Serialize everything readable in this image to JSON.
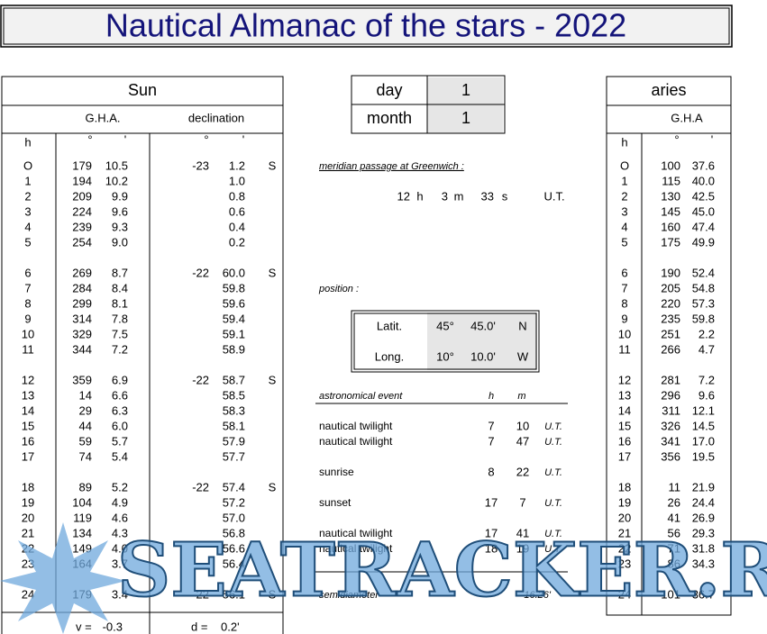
{
  "title": "Nautical Almanac of the stars  -  2022",
  "sun": {
    "header": "Sun",
    "gha_header": "G.H.A.",
    "dec_header": "declination",
    "col_h": "h",
    "deg": "°",
    "min": "'",
    "rows": [
      {
        "h": "O",
        "gha_deg": "179",
        "gha_min": "10.5",
        "dec_deg": "-23",
        "dec_min": "1.2",
        "ns": "S"
      },
      {
        "h": "1",
        "gha_deg": "194",
        "gha_min": "10.2",
        "dec_min": "1.0"
      },
      {
        "h": "2",
        "gha_deg": "209",
        "gha_min": "9.9",
        "dec_min": "0.8"
      },
      {
        "h": "3",
        "gha_deg": "224",
        "gha_min": "9.6",
        "dec_min": "0.6"
      },
      {
        "h": "4",
        "gha_deg": "239",
        "gha_min": "9.3",
        "dec_min": "0.4"
      },
      {
        "h": "5",
        "gha_deg": "254",
        "gha_min": "9.0",
        "dec_min": "0.2"
      },
      {
        "h": "6",
        "gha_deg": "269",
        "gha_min": "8.7",
        "dec_deg": "-22",
        "dec_min": "60.0",
        "ns": "S"
      },
      {
        "h": "7",
        "gha_deg": "284",
        "gha_min": "8.4",
        "dec_min": "59.8"
      },
      {
        "h": "8",
        "gha_deg": "299",
        "gha_min": "8.1",
        "dec_min": "59.6"
      },
      {
        "h": "9",
        "gha_deg": "314",
        "gha_min": "7.8",
        "dec_min": "59.4"
      },
      {
        "h": "10",
        "gha_deg": "329",
        "gha_min": "7.5",
        "dec_min": "59.1"
      },
      {
        "h": "11",
        "gha_deg": "344",
        "gha_min": "7.2",
        "dec_min": "58.9"
      },
      {
        "h": "12",
        "gha_deg": "359",
        "gha_min": "6.9",
        "dec_deg": "-22",
        "dec_min": "58.7",
        "ns": "S"
      },
      {
        "h": "13",
        "gha_deg": "14",
        "gha_min": "6.6",
        "dec_min": "58.5"
      },
      {
        "h": "14",
        "gha_deg": "29",
        "gha_min": "6.3",
        "dec_min": "58.3"
      },
      {
        "h": "15",
        "gha_deg": "44",
        "gha_min": "6.0",
        "dec_min": "58.1"
      },
      {
        "h": "16",
        "gha_deg": "59",
        "gha_min": "5.7",
        "dec_min": "57.9"
      },
      {
        "h": "17",
        "gha_deg": "74",
        "gha_min": "5.4",
        "dec_min": "57.7"
      },
      {
        "h": "18",
        "gha_deg": "89",
        "gha_min": "5.2",
        "dec_deg": "-22",
        "dec_min": "57.4",
        "ns": "S"
      },
      {
        "h": "19",
        "gha_deg": "104",
        "gha_min": "4.9",
        "dec_min": "57.2"
      },
      {
        "h": "20",
        "gha_deg": "119",
        "gha_min": "4.6",
        "dec_min": "57.0"
      },
      {
        "h": "21",
        "gha_deg": "134",
        "gha_min": "4.3",
        "dec_min": "56.8"
      },
      {
        "h": "22",
        "gha_deg": "149",
        "gha_min": "4.0",
        "dec_min": "56.6"
      },
      {
        "h": "23",
        "gha_deg": "164",
        "gha_min": "3.7",
        "dec_min": "56.4"
      },
      {
        "h": "24",
        "gha_deg": "179",
        "gha_min": "3.4",
        "dec_deg": "-22",
        "dec_min": "56.1",
        "ns": "S"
      }
    ],
    "footer": {
      "v_label": "v =",
      "v": "-0.3",
      "d_label": "d =",
      "d": "0.2'"
    }
  },
  "inputs": {
    "day_label": "day",
    "day": "1",
    "month_label": "month",
    "month": "1"
  },
  "meridian": {
    "label": "meridian passage at Greenwich :",
    "hours": "12",
    "h": "h",
    "minutes": "3",
    "m": "m",
    "seconds": "33",
    "s": "s",
    "ut": "U.T."
  },
  "position": {
    "label": "position :",
    "lat": {
      "label": "Latit.",
      "deg": "45°",
      "min": "45.0'",
      "dir": "N"
    },
    "lon": {
      "label": "Long.",
      "deg": "10°",
      "min": "10.0'",
      "dir": "W"
    }
  },
  "events": {
    "header": "astronomical event",
    "h": "h",
    "m": "m",
    "rows": [
      {
        "name": "nautical twilight",
        "h": "7",
        "m": "10",
        "ut": "U.T."
      },
      {
        "name": "nautical twilight",
        "h": "7",
        "m": "47",
        "ut": "U.T."
      },
      {
        "name": "sunrise",
        "h": "8",
        "m": "22",
        "ut": "U.T."
      },
      {
        "name": "sunset",
        "h": "17",
        "m": "7",
        "ut": "U.T."
      },
      {
        "name": "nautical twilight",
        "h": "17",
        "m": "41",
        "ut": "U.T."
      },
      {
        "name": "nautical twilight",
        "h": "18",
        "m": "19",
        "ut": "U.T."
      }
    ]
  },
  "semidiameter": {
    "label": "semidiameter",
    "value": "16.26'"
  },
  "aries": {
    "header": "aries",
    "gha_header": "G.H.A",
    "col_h": "h",
    "deg": "°",
    "min": "'",
    "rows": [
      {
        "h": "O",
        "deg": "100",
        "min": "37.6"
      },
      {
        "h": "1",
        "deg": "115",
        "min": "40.0"
      },
      {
        "h": "2",
        "deg": "130",
        "min": "42.5"
      },
      {
        "h": "3",
        "deg": "145",
        "min": "45.0"
      },
      {
        "h": "4",
        "deg": "160",
        "min": "47.4"
      },
      {
        "h": "5",
        "deg": "175",
        "min": "49.9"
      },
      {
        "h": "6",
        "deg": "190",
        "min": "52.4"
      },
      {
        "h": "7",
        "deg": "205",
        "min": "54.8"
      },
      {
        "h": "8",
        "deg": "220",
        "min": "57.3"
      },
      {
        "h": "9",
        "deg": "235",
        "min": "59.8"
      },
      {
        "h": "10",
        "deg": "251",
        "min": "2.2"
      },
      {
        "h": "11",
        "deg": "266",
        "min": "4.7"
      },
      {
        "h": "12",
        "deg": "281",
        "min": "7.2"
      },
      {
        "h": "13",
        "deg": "296",
        "min": "9.6"
      },
      {
        "h": "14",
        "deg": "311",
        "min": "12.1"
      },
      {
        "h": "15",
        "deg": "326",
        "min": "14.5"
      },
      {
        "h": "16",
        "deg": "341",
        "min": "17.0"
      },
      {
        "h": "17",
        "deg": "356",
        "min": "19.5"
      },
      {
        "h": "18",
        "deg": "11",
        "min": "21.9"
      },
      {
        "h": "19",
        "deg": "26",
        "min": "24.4"
      },
      {
        "h": "20",
        "deg": "41",
        "min": "26.9"
      },
      {
        "h": "21",
        "deg": "56",
        "min": "29.3"
      },
      {
        "h": "22",
        "deg": "71",
        "min": "31.8"
      },
      {
        "h": "23",
        "deg": "86",
        "min": "34.3"
      },
      {
        "h": "24",
        "deg": "101",
        "min": "36.7"
      }
    ]
  },
  "watermark": "SEATRACKER.RU"
}
